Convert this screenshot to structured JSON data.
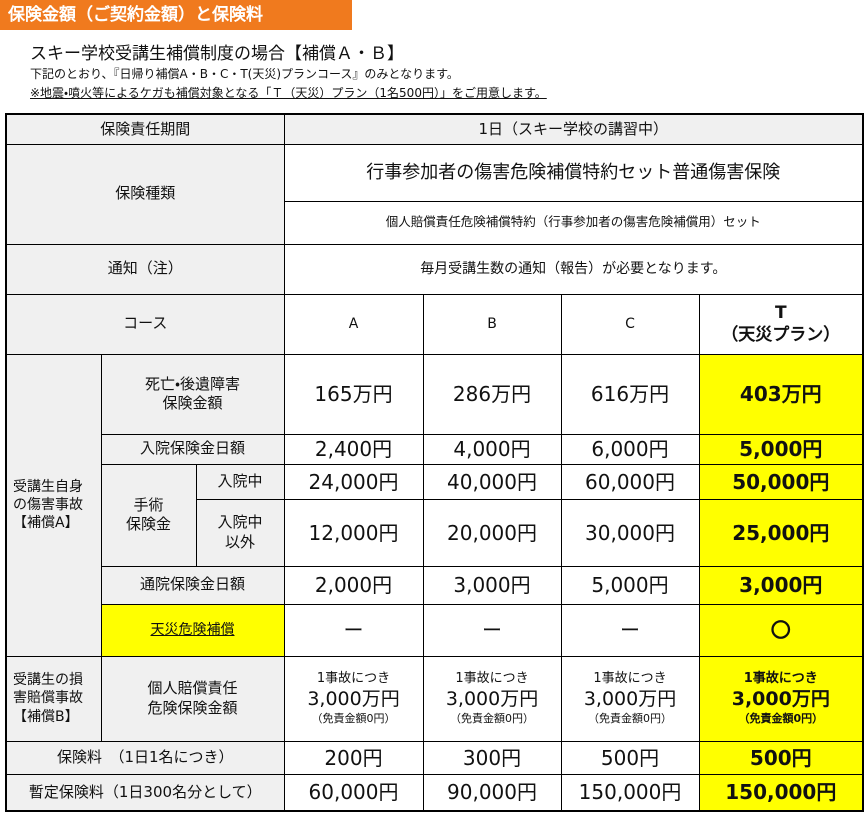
{
  "header": {
    "badge": "保険金額（ご契約金額）と保険料",
    "title": "スキー学校受講生補償制度の場合【補償Ａ・Ｂ】",
    "lines": [
      "下記のとおり、『日帰り補償A・B・C・T(天災)プランコース』のみとなります。",
      "※地震・噴火等によるケガも補償対象となる「Ｔ（天災）プラン（1名500円）」をご用意します。"
    ]
  },
  "table": {
    "period": {
      "label": "保険責任期間",
      "value": "1日（スキー学校の講習中）"
    },
    "insurance_type": {
      "label": "保険種類",
      "values": [
        "行事参加者の傷害危険補償特約セット普通傷害保険",
        "個人賠償責任危険補償特約（行事参加者の傷害危険補償用）セット"
      ]
    },
    "notice": {
      "label": "通知（注）",
      "value": "毎月受講生数の通知（報告）が必要となります。"
    },
    "course": {
      "label": "コース",
      "columns": [
        "A",
        "B",
        "C",
        "T"
      ],
      "t_note": "（天災プラン）"
    },
    "group_a": [
      "受講生自身",
      "の傷害事故",
      "【補償A】"
    ],
    "death": {
      "label": [
        "死亡・後遺障害",
        "保険金額"
      ],
      "values": [
        "165万円",
        "286万円",
        "616万円",
        "403万円"
      ]
    },
    "hospital_daily": {
      "label": "入院保険金日額",
      "values": [
        "2,400円",
        "4,000円",
        "6,000円",
        "5,000円"
      ]
    },
    "surgery": {
      "label": [
        "手術",
        "保険金"
      ],
      "inpatient": {
        "label": "入院中",
        "values": [
          "24,000円",
          "40,000円",
          "60,000円",
          "50,000円"
        ]
      },
      "outpatient": {
        "label": [
          "入院中",
          "以外"
        ],
        "values": [
          "12,000円",
          "20,000円",
          "30,000円",
          "25,000円"
        ]
      }
    },
    "outpatient_daily": {
      "label": "通院保険金日額",
      "values": [
        "2,000円",
        "3,000円",
        "5,000円",
        "3,000円"
      ]
    },
    "disaster": {
      "label": "天災危険補償",
      "values": [
        "ー",
        "ー",
        "ー",
        "〇"
      ]
    },
    "group_b": [
      "受講生の損",
      "害賠償事故",
      "【補償B】"
    ],
    "liability": {
      "label": [
        "個人賠償責任",
        "危険保険金額"
      ],
      "cells": [
        {
          "top": "1事故につき",
          "amount": "3,000万円",
          "note": "（免責金額0円）"
        },
        {
          "top": "1事故につき",
          "amount": "3,000万円",
          "note": "（免責金額0円）"
        },
        {
          "top": "1事故につき",
          "amount": "3,000万円",
          "note": "（免責金額0円）"
        },
        {
          "top": "1事故につき",
          "amount": "3,000万円",
          "note": "（免責金額0円）"
        }
      ]
    },
    "premium": {
      "label": "保険料　（1日1名につき）",
      "values": [
        "200円",
        "300円",
        "500円",
        "500円"
      ]
    },
    "provisional": {
      "label": "暫定保険料（1日300名分として）",
      "values": [
        "60,000円",
        "90,000円",
        "150,000円",
        "150,000円"
      ]
    }
  }
}
